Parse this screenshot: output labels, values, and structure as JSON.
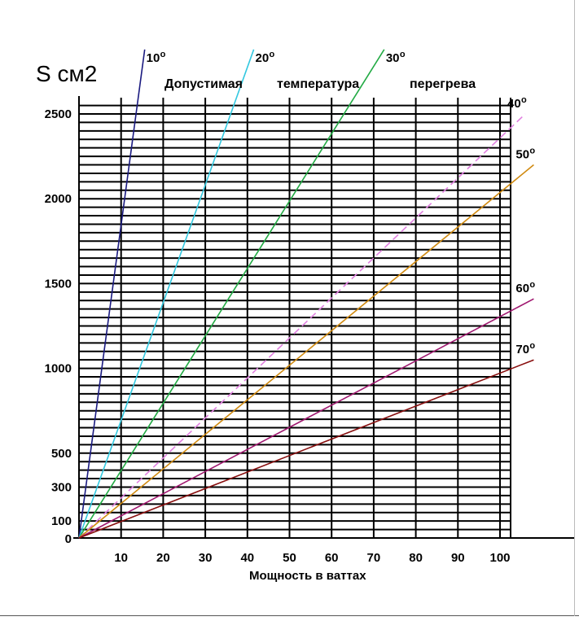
{
  "chart_data": {
    "type": "line",
    "ylabel": "S см2",
    "title_words": [
      "Допустимая",
      "температура",
      "перегрева"
    ],
    "xlabel": "Мощность в ваттах",
    "x_ticks": [
      10,
      20,
      30,
      40,
      50,
      60,
      70,
      80,
      90,
      100
    ],
    "y_ticks": [
      0,
      100,
      300,
      500,
      1000,
      1500,
      2000,
      2500
    ],
    "xlim": [
      0,
      100
    ],
    "ylim": [
      0,
      2500
    ],
    "grid": true,
    "series": [
      {
        "name": "10",
        "unit": "o",
        "color": "#1a1a80",
        "dash": false,
        "x": [
          0,
          15.6
        ],
        "y": [
          0,
          2880
        ]
      },
      {
        "name": "20",
        "unit": "o",
        "color": "#33c8e0",
        "dash": false,
        "x": [
          0,
          41.5
        ],
        "y": [
          0,
          2880
        ]
      },
      {
        "name": "30",
        "unit": "o",
        "color": "#22aa44",
        "dash": false,
        "x": [
          0,
          72.5
        ],
        "y": [
          0,
          2880
        ]
      },
      {
        "name": "40",
        "unit": "o",
        "color": "#e080e0",
        "dash": true,
        "x": [
          0,
          106
        ],
        "y": [
          0,
          2500
        ]
      },
      {
        "name": "50",
        "unit": "o",
        "color": "#d08a10",
        "dash": false,
        "x": [
          0,
          108
        ],
        "y": [
          0,
          2200
        ]
      },
      {
        "name": "60",
        "unit": "o",
        "color": "#a01870",
        "dash": false,
        "x": [
          0,
          108
        ],
        "y": [
          0,
          1410
        ]
      },
      {
        "name": "70",
        "unit": "o",
        "color": "#880e0e",
        "dash": false,
        "x": [
          0,
          108
        ],
        "y": [
          0,
          1050
        ]
      }
    ]
  }
}
